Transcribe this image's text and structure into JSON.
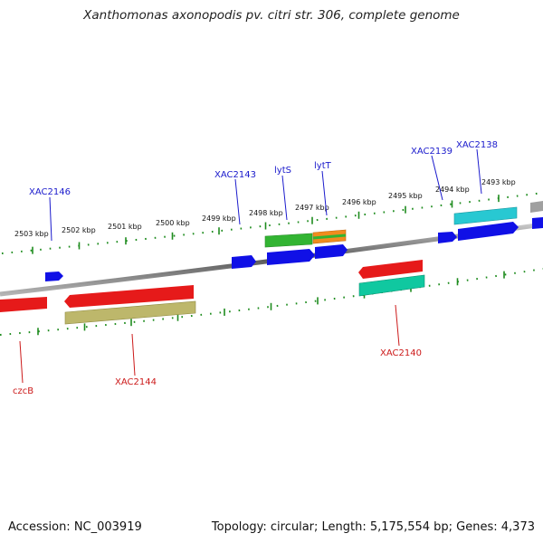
{
  "title": "Xanthomonas axonopodis pv. citri str. 306, complete genome",
  "accession": "Accession: NC_003919",
  "summary": "Topology: circular; Length: 5,175,554 bp; Genes: 4,373",
  "colors": {
    "forward_label": "#1a1acc",
    "reverse_label": "#cc1a1a",
    "backbone": "#888888",
    "ticks": "#1e8c1e",
    "blue_gene": "#1010e6",
    "red_gene": "#e61a1a",
    "khaki_gene": "#bdb76b",
    "teal_gene": "#10c8a0",
    "green_gene": "#32b432",
    "orange_gene": "#f08c1e",
    "cyan_gene": "#28c8d2",
    "gray_gene": "#a0a0a0"
  },
  "kbp_labels": [
    "2503 kbp",
    "2502 kbp",
    "2501 kbp",
    "2500 kbp",
    "2499 kbp",
    "2498 kbp",
    "2497 kbp",
    "2496 kbp",
    "2495 kbp",
    "2494 kbp",
    "2493 kbp"
  ],
  "gene_labels": {
    "XAC2146": "XAC2146",
    "XAC2143": "XAC2143",
    "lytS": "lytS",
    "lytT": "lytT",
    "XAC2139": "XAC2139",
    "XAC2138": "XAC2138",
    "czcB": "czcB",
    "XAC2144": "XAC2144",
    "XAC2140": "XAC2140"
  }
}
